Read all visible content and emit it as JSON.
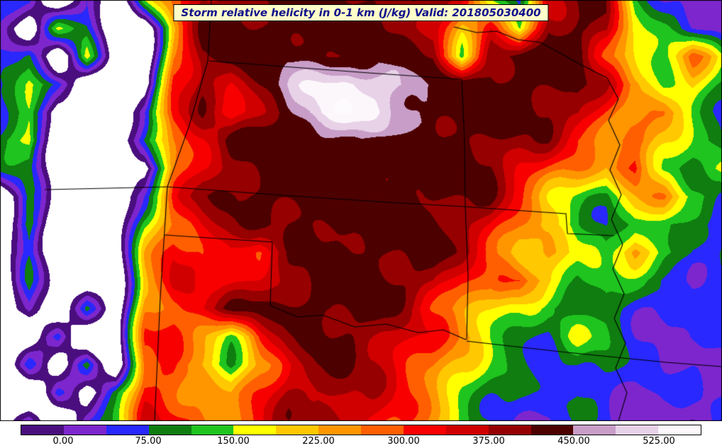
{
  "figure": {
    "title": "Storm relative helicity in 0-1 km (J/kg) Valid: 201805030400"
  },
  "chart_data": {
    "type": "heatmap",
    "title": "Storm relative helicity in 0-1 km (J/kg)",
    "valid_time": "201805030400",
    "units": "J/kg",
    "legend_position": "bottom",
    "colorbar": {
      "tick_labels": [
        "0.00",
        "75.00",
        "150.00",
        "225.00",
        "300.00",
        "375.00",
        "450.00",
        "525.00"
      ],
      "tick_values": [
        0,
        75,
        150,
        225,
        300,
        375,
        450,
        525
      ],
      "boundaries": [
        -37.5,
        0,
        37.5,
        75,
        112.5,
        150,
        187.5,
        225,
        262.5,
        300,
        337.5,
        375,
        412.5,
        450,
        487.5,
        525,
        562.5
      ],
      "colors": [
        "#4a0e7e",
        "#7d26cd",
        "#2828ff",
        "#0f7d0f",
        "#1fc41f",
        "#ffff00",
        "#ffc800",
        "#ff9600",
        "#ff5f00",
        "#f80000",
        "#d00000",
        "#960000",
        "#4d0000",
        "#c89ec8",
        "#e8d2e8",
        "#fbf7fb"
      ],
      "under_color": "#ffffff",
      "over_color": "#fdfbfd"
    },
    "grid": {
      "nx": 26,
      "ny": 16,
      "masked_value": -120,
      "values": [
        [
          30,
          40,
          -120,
          60,
          -120,
          120,
          260,
          390,
          410,
          420,
          430,
          430,
          430,
          425,
          420,
          400,
          310,
          160,
          90,
          360,
          410,
          390,
          110,
          60,
          35,
          20
        ],
        [
          45,
          -120,
          130,
          80,
          -120,
          -120,
          210,
          420,
          430,
          435,
          440,
          440,
          435,
          425,
          405,
          385,
          210,
          310,
          130,
          420,
          430,
          400,
          150,
          95,
          55,
          30
        ],
        [
          60,
          105,
          -120,
          150,
          -120,
          -120,
          265,
          420,
          432,
          440,
          448,
          440,
          425,
          432,
          420,
          400,
          160,
          420,
          432,
          440,
          430,
          305,
          205,
          125,
          270,
          150
        ],
        [
          35,
          150,
          85,
          -120,
          -120,
          -120,
          300,
          405,
          355,
          420,
          470,
          520,
          545,
          532,
          500,
          442,
          432,
          440,
          442,
          432,
          422,
          352,
          252,
          155,
          205,
          105
        ],
        [
          85,
          125,
          -120,
          -120,
          -120,
          55,
          320,
          385,
          305,
          385,
          452,
          522,
          542,
          522,
          482,
          442,
          440,
          440,
          432,
          422,
          402,
          302,
          202,
          252,
          152,
          82
        ],
        [
          105,
          185,
          -120,
          -120,
          -120,
          85,
          285,
          345,
          420,
          432,
          442,
          452,
          452,
          442,
          442,
          440,
          432,
          422,
          402,
          382,
          302,
          252,
          302,
          202,
          122,
          62
        ],
        [
          62,
          102,
          -120,
          -120,
          -120,
          -120,
          252,
          352,
          402,
          432,
          442,
          450,
          450,
          448,
          442,
          432,
          430,
          422,
          352,
          302,
          252,
          202,
          322,
          152,
          102,
          152
        ],
        [
          -120,
          82,
          -120,
          -120,
          -120,
          62,
          302,
          382,
          422,
          432,
          442,
          448,
          450,
          442,
          440,
          432,
          422,
          402,
          302,
          202,
          152,
          102,
          202,
          252,
          152,
          82
        ],
        [
          -120,
          122,
          -120,
          -120,
          -120,
          152,
          282,
          352,
          382,
          402,
          422,
          432,
          442,
          440,
          432,
          422,
          402,
          352,
          252,
          182,
          122,
          82,
          152,
          122,
          62,
          42
        ],
        [
          -120,
          62,
          -120,
          -120,
          -120,
          202,
          322,
          302,
          352,
          302,
          382,
          422,
          432,
          432,
          430,
          422,
          382,
          302,
          202,
          252,
          152,
          102,
          252,
          152,
          82,
          62
        ],
        [
          -120,
          82,
          -120,
          -120,
          -120,
          222,
          352,
          282,
          322,
          362,
          402,
          422,
          432,
          430,
          422,
          402,
          302,
          252,
          302,
          202,
          122,
          152,
          102,
          62,
          42,
          82
        ],
        [
          -120,
          52,
          -120,
          62,
          -120,
          252,
          302,
          352,
          402,
          422,
          432,
          440,
          432,
          422,
          382,
          302,
          252,
          202,
          152,
          102,
          82,
          122,
          62,
          42,
          32,
          52
        ],
        [
          -120,
          -120,
          82,
          -120,
          -120,
          282,
          322,
          252,
          152,
          302,
          382,
          422,
          422,
          402,
          352,
          302,
          252,
          152,
          102,
          82,
          152,
          102,
          52,
          32,
          62,
          42
        ],
        [
          -120,
          42,
          -120,
          102,
          -120,
          302,
          282,
          202,
          102,
          252,
          352,
          402,
          402,
          382,
          322,
          282,
          202,
          122,
          82,
          62,
          102,
          82,
          42,
          22,
          42,
          32
        ],
        [
          -120,
          -120,
          62,
          -120,
          82,
          322,
          302,
          252,
          202,
          302,
          382,
          402,
          392,
          352,
          302,
          252,
          152,
          102,
          62,
          42,
          82,
          62,
          32,
          42,
          22,
          32
        ],
        [
          -120,
          32,
          -120,
          62,
          102,
          342,
          322,
          282,
          252,
          322,
          382,
          402,
          382,
          342,
          302,
          222,
          122,
          82,
          52,
          32,
          62,
          42,
          22,
          32,
          15,
          25
        ]
      ]
    },
    "borders": [
      [
        [
          295,
          86
        ],
        [
          400,
          94
        ],
        [
          520,
          103
        ],
        [
          651,
          112
        ]
      ],
      [
        [
          651,
          112
        ],
        [
          655,
          200
        ],
        [
          656,
          292
        ]
      ],
      [
        [
          236,
          264
        ],
        [
          400,
          276
        ],
        [
          550,
          286
        ],
        [
          656,
          292
        ]
      ],
      [
        [
          293,
          86
        ],
        [
          266,
          180
        ],
        [
          236,
          264
        ]
      ],
      [
        [
          298,
          0
        ],
        [
          293,
          86
        ]
      ],
      [
        [
          63,
          268
        ],
        [
          150,
          266
        ],
        [
          236,
          264
        ]
      ],
      [
        [
          236,
          264
        ],
        [
          226,
          420
        ],
        [
          218,
          595
        ]
      ],
      [
        [
          232,
          332
        ],
        [
          384,
          342
        ]
      ],
      [
        [
          384,
          342
        ],
        [
          381,
          432
        ]
      ],
      [
        [
          381,
          432
        ],
        [
          420,
          448
        ],
        [
          455,
          445
        ],
        [
          500,
          462
        ],
        [
          545,
          458
        ],
        [
          590,
          470
        ],
        [
          625,
          466
        ],
        [
          657,
          480
        ]
      ],
      [
        [
          656,
          292
        ],
        [
          660,
          390
        ],
        [
          658,
          480
        ]
      ],
      [
        [
          656,
          292
        ],
        [
          740,
          298
        ],
        [
          798,
          302
        ],
        [
          800,
          330
        ],
        [
          866,
          333
        ]
      ],
      [
        [
          856,
          110
        ],
        [
          872,
          140
        ],
        [
          858,
          170
        ],
        [
          874,
          205
        ],
        [
          860,
          240
        ],
        [
          876,
          275
        ],
        [
          862,
          310
        ],
        [
          878,
          345
        ],
        [
          864,
          380
        ],
        [
          880,
          415
        ],
        [
          866,
          450
        ],
        [
          882,
          485
        ],
        [
          868,
          520
        ],
        [
          884,
          555
        ],
        [
          872,
          595
        ]
      ],
      [
        [
          640,
          38
        ],
        [
          672,
          46
        ],
        [
          700,
          44
        ],
        [
          730,
          56
        ],
        [
          762,
          60
        ],
        [
          788,
          74
        ],
        [
          820,
          92
        ],
        [
          856,
          110
        ]
      ],
      [
        [
          658,
          482
        ],
        [
          800,
          498
        ],
        [
          940,
          512
        ],
        [
          1017,
          518
        ]
      ]
    ]
  }
}
